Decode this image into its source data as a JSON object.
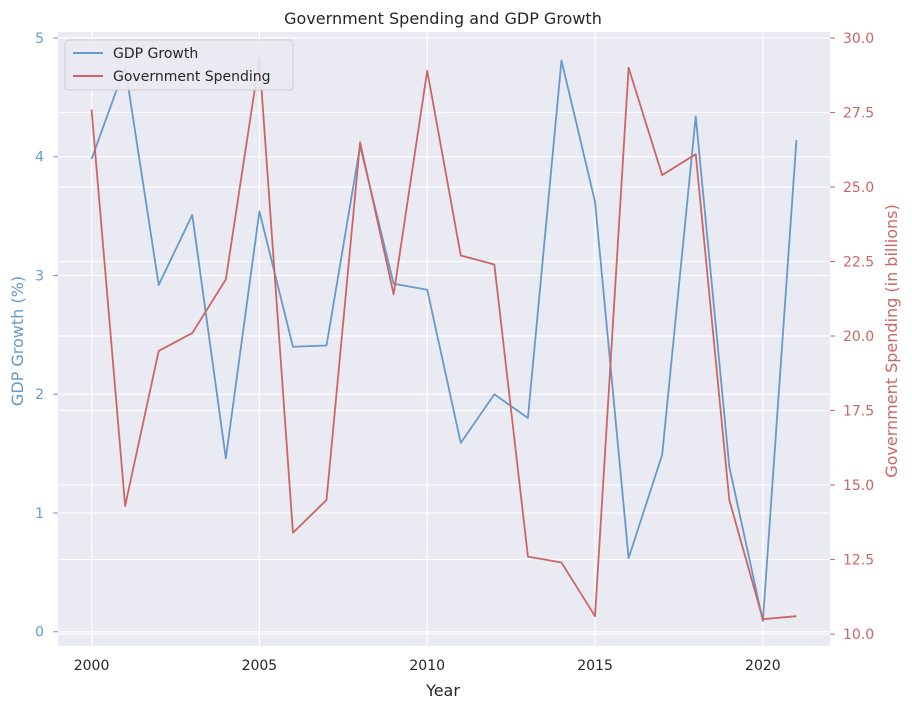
{
  "chart_data": {
    "type": "line",
    "title": "Government Spending and GDP Growth",
    "xlabel": "Year",
    "ylabel_left": "GDP Growth (%)",
    "ylabel_right": "Government Spending (in billions)",
    "x": [
      2000,
      2001,
      2002,
      2003,
      2004,
      2005,
      2006,
      2007,
      2008,
      2009,
      2010,
      2011,
      2012,
      2013,
      2014,
      2015,
      2016,
      2017,
      2018,
      2019,
      2020,
      2021
    ],
    "xlim": [
      1999,
      2022
    ],
    "x_ticks": [
      2000,
      2005,
      2010,
      2015,
      2020
    ],
    "y_left_lim": [
      -0.12,
      5.05
    ],
    "y_left_ticks": [
      0,
      1,
      2,
      3,
      4,
      5
    ],
    "y_right_lim": [
      9.6,
      30.2
    ],
    "y_right_ticks": [
      10.0,
      12.5,
      15.0,
      17.5,
      20.0,
      22.5,
      25.0,
      27.5,
      30.0
    ],
    "grid": true,
    "legend_position": "top-left",
    "series": [
      {
        "name": "GDP Growth",
        "axis": "left",
        "color": "#6699cc",
        "values": [
          3.98,
          4.76,
          2.92,
          3.51,
          1.46,
          3.54,
          2.4,
          2.41,
          4.09,
          2.93,
          2.88,
          1.59,
          2.0,
          1.8,
          4.81,
          3.62,
          0.62,
          1.49,
          4.34,
          1.39,
          0.09,
          4.14
        ]
      },
      {
        "name": "Government Spending",
        "axis": "right",
        "color": "#cc6666",
        "values": [
          27.6,
          14.3,
          19.5,
          20.1,
          21.9,
          29.3,
          13.4,
          14.5,
          26.5,
          21.4,
          28.9,
          22.7,
          22.4,
          12.6,
          12.4,
          10.6,
          29.0,
          25.4,
          26.1,
          14.5,
          10.5,
          10.6
        ]
      }
    ]
  },
  "colors": {
    "plot_background": "#eaeaf2",
    "grid": "#ffffff",
    "left_axis": "#6699cc",
    "right_axis": "#cc6666",
    "text": "#262626"
  }
}
